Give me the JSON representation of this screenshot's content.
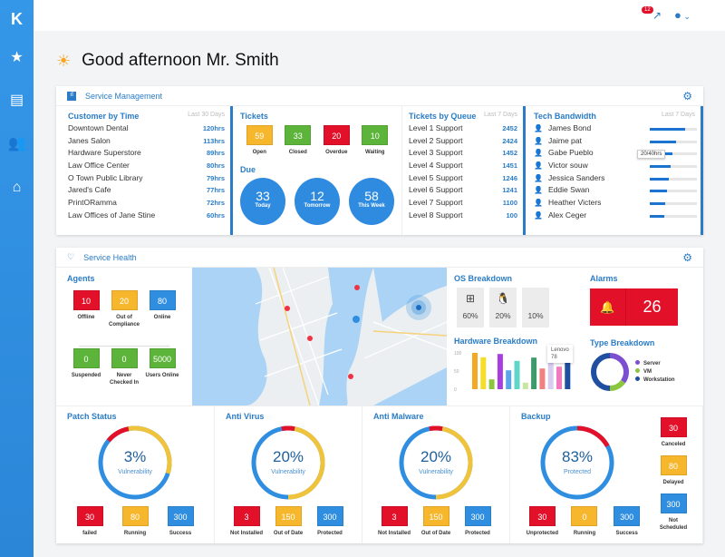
{
  "sidebar": {
    "items": [
      {
        "icon": "logo-icon"
      },
      {
        "icon": "star-icon"
      },
      {
        "icon": "document-icon"
      },
      {
        "icon": "users-icon"
      },
      {
        "icon": "home-icon"
      }
    ]
  },
  "topbar": {
    "notification_count": "12"
  },
  "greeting": "Good afternoon Mr. Smith",
  "service_management": {
    "title": "Service Management",
    "customer_by_time": {
      "title": "Customer by Time",
      "range": "Last 30 Days",
      "rows": [
        {
          "name": "Downtown Dental",
          "value": "120hrs"
        },
        {
          "name": "Janes Salon",
          "value": "113hrs"
        },
        {
          "name": "Hardware Superstore",
          "value": "89hrs"
        },
        {
          "name": "Law Office Center",
          "value": "80hrs"
        },
        {
          "name": "O Town Public Library",
          "value": "79hrs"
        },
        {
          "name": "Jared's Cafe",
          "value": "77hrs"
        },
        {
          "name": "PrintORamma",
          "value": "72hrs"
        },
        {
          "name": "Law Offices of Jane Stine",
          "value": "60hrs"
        }
      ]
    },
    "tickets": {
      "title": "Tickets",
      "items": [
        {
          "value": "59",
          "label": "Open",
          "color": "#f6b72d"
        },
        {
          "value": "33",
          "label": "Closed",
          "color": "#5db43a"
        },
        {
          "value": "20",
          "label": "Overdue",
          "color": "#e3102a"
        },
        {
          "value": "10",
          "label": "Waiting",
          "color": "#5db43a"
        }
      ]
    },
    "due": {
      "title": "Due",
      "items": [
        {
          "value": "33",
          "label": "Today"
        },
        {
          "value": "12",
          "label": "Tomorrow"
        },
        {
          "value": "58",
          "label": "This Week"
        }
      ]
    },
    "tickets_by_queue": {
      "title": "Tickets by Queue",
      "range": "Last 7 Days",
      "rows": [
        {
          "name": "Level 1 Support",
          "value": "2452"
        },
        {
          "name": "Level 2 Support",
          "value": "2424"
        },
        {
          "name": "Level 3 Support",
          "value": "1452"
        },
        {
          "name": "Level 4 Support",
          "value": "1451"
        },
        {
          "name": "Level 5 Support",
          "value": "1246"
        },
        {
          "name": "Level 6 Support",
          "value": "1241"
        },
        {
          "name": "Level 7 Support",
          "value": "1100"
        },
        {
          "name": "Level 8 Support",
          "value": "100"
        }
      ]
    },
    "tech_bandwidth": {
      "title": "Tech Bandwidth",
      "range": "Last 7 Days",
      "tooltip": "20/40hrs",
      "rows": [
        {
          "name": "James Bond",
          "fill": 0.75
        },
        {
          "name": "Jaime pat",
          "fill": 0.55
        },
        {
          "name": "Gabe Pueblo",
          "fill": 0.48
        },
        {
          "name": "Victor souw",
          "fill": 0.44
        },
        {
          "name": "Jessica Sanders",
          "fill": 0.4
        },
        {
          "name": "Eddie Swan",
          "fill": 0.36
        },
        {
          "name": "Heather Victers",
          "fill": 0.32
        },
        {
          "name": "Alex Ceger",
          "fill": 0.3
        }
      ]
    }
  },
  "service_health": {
    "title": "Service Health",
    "agents": {
      "title": "Agents",
      "items": [
        {
          "value": "10",
          "label": "Offline",
          "color": "#e3102a"
        },
        {
          "value": "20",
          "label": "Out of Compliance",
          "color": "#f6b72d"
        },
        {
          "value": "80",
          "label": "Online",
          "color": "#2f8ee0"
        },
        {
          "value": "0",
          "label": "Suspended",
          "color": "#5db43a"
        },
        {
          "value": "0",
          "label": "Never Checked In",
          "color": "#5db43a"
        },
        {
          "value": "5000",
          "label": "Users Online",
          "color": "#5db43a"
        }
      ]
    },
    "os_breakdown": {
      "title": "OS Breakdown",
      "items": [
        {
          "icon": "windows-icon",
          "value": "60%"
        },
        {
          "icon": "linux-icon",
          "value": "20%"
        },
        {
          "icon": "apple-icon",
          "value": "10%"
        }
      ]
    },
    "alarms": {
      "title": "Alarms",
      "value": "26"
    },
    "hardware_breakdown": {
      "title": "Hardware Breakdown",
      "tooltip_label": "Lenovo",
      "tooltip_value": "78"
    },
    "type_breakdown": {
      "title": "Type Breakdown",
      "legend": [
        {
          "label": "Server",
          "color": "#7b4fd0"
        },
        {
          "label": "VM",
          "color": "#8cc63f"
        },
        {
          "label": "Workstation",
          "color": "#1f4fa0"
        }
      ]
    },
    "patch_status": {
      "title": "Patch Status",
      "percent": "3%",
      "caption": "Vulnerability",
      "items": [
        {
          "value": "30",
          "label": "failed",
          "color": "#e3102a"
        },
        {
          "value": "80",
          "label": "Running",
          "color": "#f6b72d"
        },
        {
          "value": "300",
          "label": "Success",
          "color": "#2f8ee0"
        }
      ]
    },
    "anti_virus": {
      "title": "Anti Virus",
      "percent": "20%",
      "caption": "Vulnerability",
      "items": [
        {
          "value": "3",
          "label": "Not Installed",
          "color": "#e3102a"
        },
        {
          "value": "150",
          "label": "Out of Date",
          "color": "#f6b72d"
        },
        {
          "value": "300",
          "label": "Protected",
          "color": "#2f8ee0"
        }
      ]
    },
    "anti_malware": {
      "title": "Anti Malware",
      "percent": "20%",
      "caption": "Vulnerability",
      "items": [
        {
          "value": "3",
          "label": "Not Installed",
          "color": "#e3102a"
        },
        {
          "value": "150",
          "label": "Out of Date",
          "color": "#f6b72d"
        },
        {
          "value": "300",
          "label": "Protected",
          "color": "#2f8ee0"
        }
      ]
    },
    "backup": {
      "title": "Backup",
      "percent": "83%",
      "caption": "Protected",
      "items": [
        {
          "value": "30",
          "label": "Unprotected",
          "color": "#e3102a"
        },
        {
          "value": "0",
          "label": "Running",
          "color": "#f6b72d"
        },
        {
          "value": "300",
          "label": "Success",
          "color": "#2f8ee0"
        }
      ],
      "side_items": [
        {
          "value": "30",
          "label": "Canceled",
          "color": "#e3102a"
        },
        {
          "value": "80",
          "label": "Delayed",
          "color": "#f6b72d"
        },
        {
          "value": "300",
          "label": "Not Scheduled",
          "color": "#2f8ee0"
        }
      ]
    }
  },
  "chart_data": [
    {
      "type": "bar",
      "title": "Hardware Breakdown",
      "ylim": [
        0,
        100
      ],
      "yticks": [
        "0",
        "50",
        "100"
      ],
      "values": [
        100,
        88,
        27,
        97,
        52,
        78,
        18,
        87,
        57,
        97,
        62,
        78
      ],
      "colors": [
        "#f7a823",
        "#f5dd2b",
        "#8cc63f",
        "#a63ee0",
        "#5aa6e6",
        "#5fd6c8",
        "#c8e6a0",
        "#3d9a6a",
        "#f28080",
        "#d8cdf0",
        "#f47ac0",
        "#1f4fa0"
      ]
    },
    {
      "type": "pie",
      "title": "Type Breakdown",
      "series": [
        {
          "name": "Server",
          "value": 35
        },
        {
          "name": "VM",
          "value": 15
        },
        {
          "name": "Workstation",
          "value": 50
        }
      ]
    }
  ]
}
